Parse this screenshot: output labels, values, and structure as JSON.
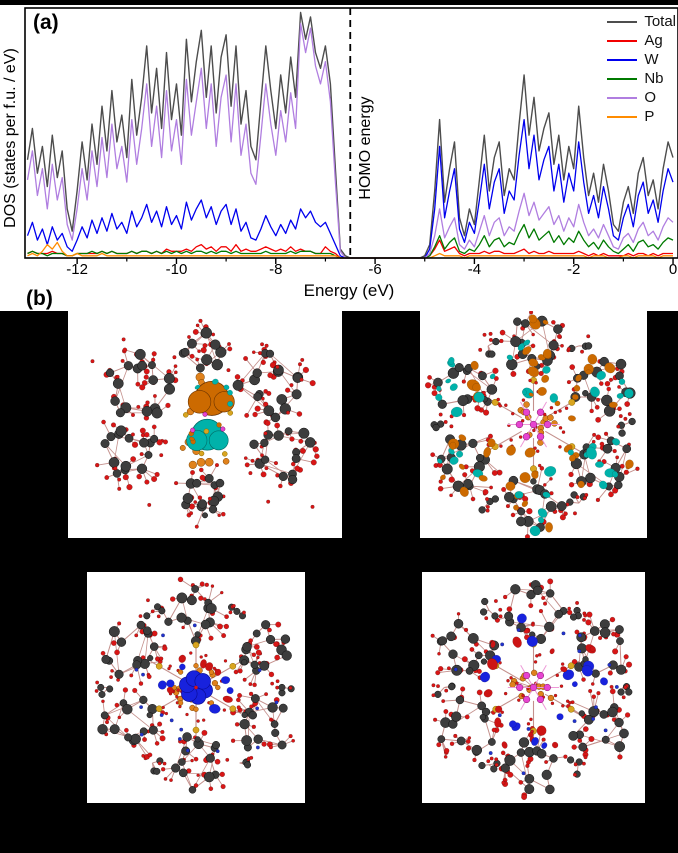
{
  "figure": {
    "panel_a_label": "(a)",
    "panel_b_label": "(b)",
    "background_color": "#000000",
    "panel_background": "#ffffff"
  },
  "chart_data": {
    "type": "line",
    "title": "",
    "xlabel": "Energy (eV)",
    "ylabel": "DOS (states per f.u. / eV)",
    "xlim": [
      -13.05,
      0.1
    ],
    "ylim": [
      0,
      112
    ],
    "x_ticks": [
      -12,
      -10,
      -8,
      -6,
      -4,
      -2,
      0
    ],
    "x_minor_ticks": [
      -11,
      -9,
      -7,
      -5,
      -3,
      -1
    ],
    "grid": false,
    "legend_position": "top-right",
    "x_start": -13.0,
    "x_step": 0.1,
    "homo_line": {
      "x": -6.5,
      "label": "HOMO energy",
      "style": "dashed",
      "color": "#000000"
    },
    "series": [
      {
        "name": "Total",
        "color": "#4d4d4d",
        "values": [
          44,
          58,
          38,
          50,
          32,
          55,
          36,
          48,
          22,
          12,
          30,
          52,
          35,
          60,
          42,
          68,
          48,
          75,
          52,
          64,
          45,
          80,
          55,
          72,
          95,
          65,
          85,
          58,
          92,
          62,
          78,
          55,
          98,
          70,
          88,
          102,
          72,
          95,
          65,
          90,
          100,
          68,
          95,
          60,
          75,
          50,
          44,
          70,
          95,
          75,
          58,
          82,
          65,
          90,
          72,
          110,
          98,
          108,
          92,
          85,
          95,
          78,
          40,
          4,
          1,
          0,
          0,
          0,
          0,
          0,
          0,
          0,
          0,
          0,
          0,
          0,
          0,
          0,
          0,
          0,
          1,
          6,
          30,
          62,
          25,
          40,
          52,
          18,
          10,
          22,
          15,
          35,
          55,
          30,
          45,
          52,
          28,
          40,
          35,
          60,
          82,
          55,
          72,
          48,
          58,
          65,
          42,
          55,
          35,
          50,
          40,
          68,
          45,
          28,
          38,
          25,
          42,
          30,
          15,
          12,
          25,
          32,
          20,
          38,
          45,
          28,
          35,
          22,
          40,
          52,
          45
        ]
      },
      {
        "name": "Ag",
        "color": "#f20000",
        "values": [
          2,
          3,
          2,
          2,
          2,
          3,
          2,
          2,
          1,
          1,
          2,
          2,
          2,
          2,
          2,
          3,
          2,
          3,
          2,
          2,
          2,
          3,
          2,
          3,
          3,
          2,
          3,
          2,
          4,
          3,
          3,
          3,
          4,
          3,
          5,
          6,
          4,
          5,
          3,
          5,
          5,
          3,
          6,
          3,
          4,
          3,
          3,
          4,
          5,
          4,
          3,
          4,
          3,
          5,
          3,
          4,
          3,
          3,
          2,
          2,
          5,
          3,
          2,
          0,
          0,
          0,
          0,
          0,
          0,
          0,
          0,
          0,
          0,
          0,
          0,
          0,
          0,
          0,
          0,
          0,
          0,
          1,
          4,
          8,
          3,
          4,
          5,
          2,
          1,
          2,
          2,
          2,
          3,
          2,
          3,
          3,
          2,
          2,
          2,
          3,
          4,
          2,
          3,
          2,
          2,
          3,
          2,
          2,
          2,
          2,
          2,
          3,
          2,
          1,
          2,
          1,
          2,
          1,
          1,
          1,
          1,
          2,
          1,
          2,
          2,
          1,
          2,
          1,
          2,
          2,
          2
        ]
      },
      {
        "name": "W",
        "color": "#0000ee",
        "values": [
          10,
          16,
          8,
          13,
          6,
          14,
          8,
          11,
          5,
          3,
          8,
          14,
          9,
          17,
          11,
          18,
          12,
          20,
          13,
          16,
          11,
          21,
          14,
          18,
          24,
          16,
          21,
          14,
          23,
          15,
          19,
          13,
          25,
          17,
          22,
          26,
          18,
          23,
          15,
          21,
          24,
          15,
          22,
          12,
          16,
          9,
          8,
          13,
          19,
          14,
          10,
          15,
          11,
          17,
          13,
          22,
          18,
          21,
          16,
          14,
          16,
          11,
          6,
          1,
          0,
          0,
          0,
          0,
          0,
          0,
          0,
          0,
          0,
          0,
          0,
          0,
          0,
          0,
          0,
          0,
          0,
          4,
          22,
          50,
          18,
          30,
          40,
          13,
          7,
          16,
          11,
          26,
          42,
          22,
          34,
          40,
          20,
          30,
          26,
          46,
          62,
          40,
          55,
          35,
          44,
          50,
          30,
          42,
          25,
          38,
          30,
          52,
          34,
          20,
          28,
          18,
          32,
          22,
          10,
          8,
          18,
          24,
          14,
          28,
          34,
          20,
          26,
          16,
          30,
          40,
          34
        ]
      },
      {
        "name": "Nb",
        "color": "#007a00",
        "values": [
          2,
          3,
          2,
          2,
          1,
          2,
          2,
          2,
          1,
          1,
          2,
          2,
          2,
          3,
          2,
          3,
          2,
          3,
          2,
          2,
          2,
          3,
          2,
          3,
          3,
          2,
          3,
          2,
          3,
          2,
          3,
          2,
          3,
          2,
          3,
          3,
          2,
          3,
          2,
          3,
          3,
          2,
          3,
          2,
          2,
          2,
          2,
          2,
          3,
          2,
          2,
          2,
          2,
          3,
          2,
          3,
          3,
          3,
          2,
          2,
          2,
          2,
          1,
          0,
          0,
          0,
          0,
          0,
          0,
          0,
          0,
          0,
          0,
          0,
          0,
          0,
          0,
          0,
          0,
          0,
          0,
          1,
          5,
          10,
          4,
          7,
          9,
          3,
          2,
          4,
          3,
          6,
          10,
          5,
          8,
          9,
          5,
          7,
          6,
          11,
          15,
          9,
          13,
          8,
          10,
          12,
          7,
          10,
          6,
          9,
          7,
          12,
          8,
          5,
          7,
          4,
          8,
          5,
          3,
          2,
          4,
          6,
          3,
          7,
          8,
          5,
          6,
          4,
          7,
          9,
          8
        ]
      },
      {
        "name": "O",
        "color": "#b07ee0",
        "values": [
          35,
          48,
          28,
          40,
          22,
          42,
          26,
          36,
          15,
          8,
          22,
          40,
          26,
          48,
          32,
          54,
          36,
          60,
          40,
          50,
          34,
          62,
          42,
          58,
          78,
          50,
          68,
          45,
          75,
          48,
          62,
          42,
          80,
          55,
          70,
          85,
          58,
          78,
          50,
          72,
          82,
          52,
          78,
          46,
          60,
          38,
          33,
          55,
          78,
          60,
          46,
          66,
          52,
          74,
          58,
          105,
          92,
          103,
          86,
          78,
          88,
          70,
          34,
          3,
          0,
          0,
          0,
          0,
          0,
          0,
          0,
          0,
          0,
          0,
          0,
          0,
          0,
          0,
          0,
          0,
          0,
          2,
          10,
          22,
          9,
          14,
          18,
          6,
          4,
          8,
          5,
          12,
          19,
          10,
          16,
          18,
          10,
          14,
          12,
          21,
          29,
          19,
          25,
          17,
          20,
          23,
          15,
          19,
          12,
          18,
          14,
          24,
          16,
          10,
          13,
          9,
          15,
          10,
          5,
          4,
          9,
          11,
          7,
          13,
          16,
          10,
          12,
          8,
          14,
          18,
          16
        ]
      },
      {
        "name": "P",
        "color": "#ff8c00",
        "values": [
          1,
          2,
          1,
          3,
          6,
          4,
          7,
          3,
          1,
          1,
          2,
          1,
          1,
          1,
          1,
          2,
          1,
          1,
          1,
          1,
          1,
          1,
          1,
          1,
          1,
          1,
          1,
          1,
          1,
          1,
          1,
          1,
          1,
          1,
          1,
          1,
          1,
          1,
          1,
          1,
          1,
          1,
          1,
          1,
          1,
          1,
          1,
          1,
          1,
          1,
          1,
          1,
          1,
          1,
          1,
          1,
          1,
          1,
          1,
          1,
          1,
          1,
          1,
          0,
          0,
          0,
          0,
          0,
          0,
          0,
          0,
          0,
          0,
          0,
          0,
          0,
          0,
          0,
          0,
          0,
          0,
          0,
          1,
          2,
          1,
          1,
          1,
          1,
          0,
          1,
          1,
          1,
          1,
          1,
          1,
          1,
          1,
          1,
          1,
          1,
          1,
          1,
          1,
          1,
          1,
          1,
          1,
          1,
          1,
          1,
          1,
          1,
          1,
          0,
          1,
          1,
          1,
          0,
          0,
          0,
          1,
          1,
          0,
          1,
          1,
          1,
          1,
          0,
          1,
          1,
          1
        ]
      }
    ]
  },
  "molecule_panel": {
    "label": "(b)",
    "image_background": "#ffffff",
    "atom_palette": {
      "metal_gray": "#3d3d3d",
      "oxygen_red": "#d81616",
      "silver_orange": "#e0821c",
      "phosphorus_yellow": "#d9a520",
      "center_magenta": "#e644d0",
      "bond": "#c4908c"
    },
    "isosurface_colors": {
      "orange": "#cc6a00",
      "cyan": "#00b2aa",
      "blue": "#1822dd",
      "red": "#cc1414",
      "magenta_bond": "#ee9ad8"
    },
    "images": [
      {
        "name": "cluster-side-view-orbital",
        "seed": 9,
        "layout": "side",
        "lobe_colors": [
          "orange",
          "cyan"
        ]
      },
      {
        "name": "cluster-top-view-orbital-delocalized",
        "seed": 14,
        "layout": "flower",
        "overlay": "scatter",
        "lobe_colors": [
          "cyan",
          "orange"
        ],
        "center_atoms": "magenta"
      },
      {
        "name": "cluster-top-view-density-center",
        "seed": 23,
        "layout": "flower",
        "overlay": "blueblob",
        "lobe_colors": [
          "blue",
          "red"
        ],
        "blue_dopants": true
      },
      {
        "name": "cluster-top-view-density-ring",
        "seed": 37,
        "layout": "flower",
        "overlay": "ringRB",
        "lobe_colors": [
          "red",
          "blue"
        ],
        "center_atoms": "magenta",
        "blue_dopants": true
      }
    ]
  }
}
